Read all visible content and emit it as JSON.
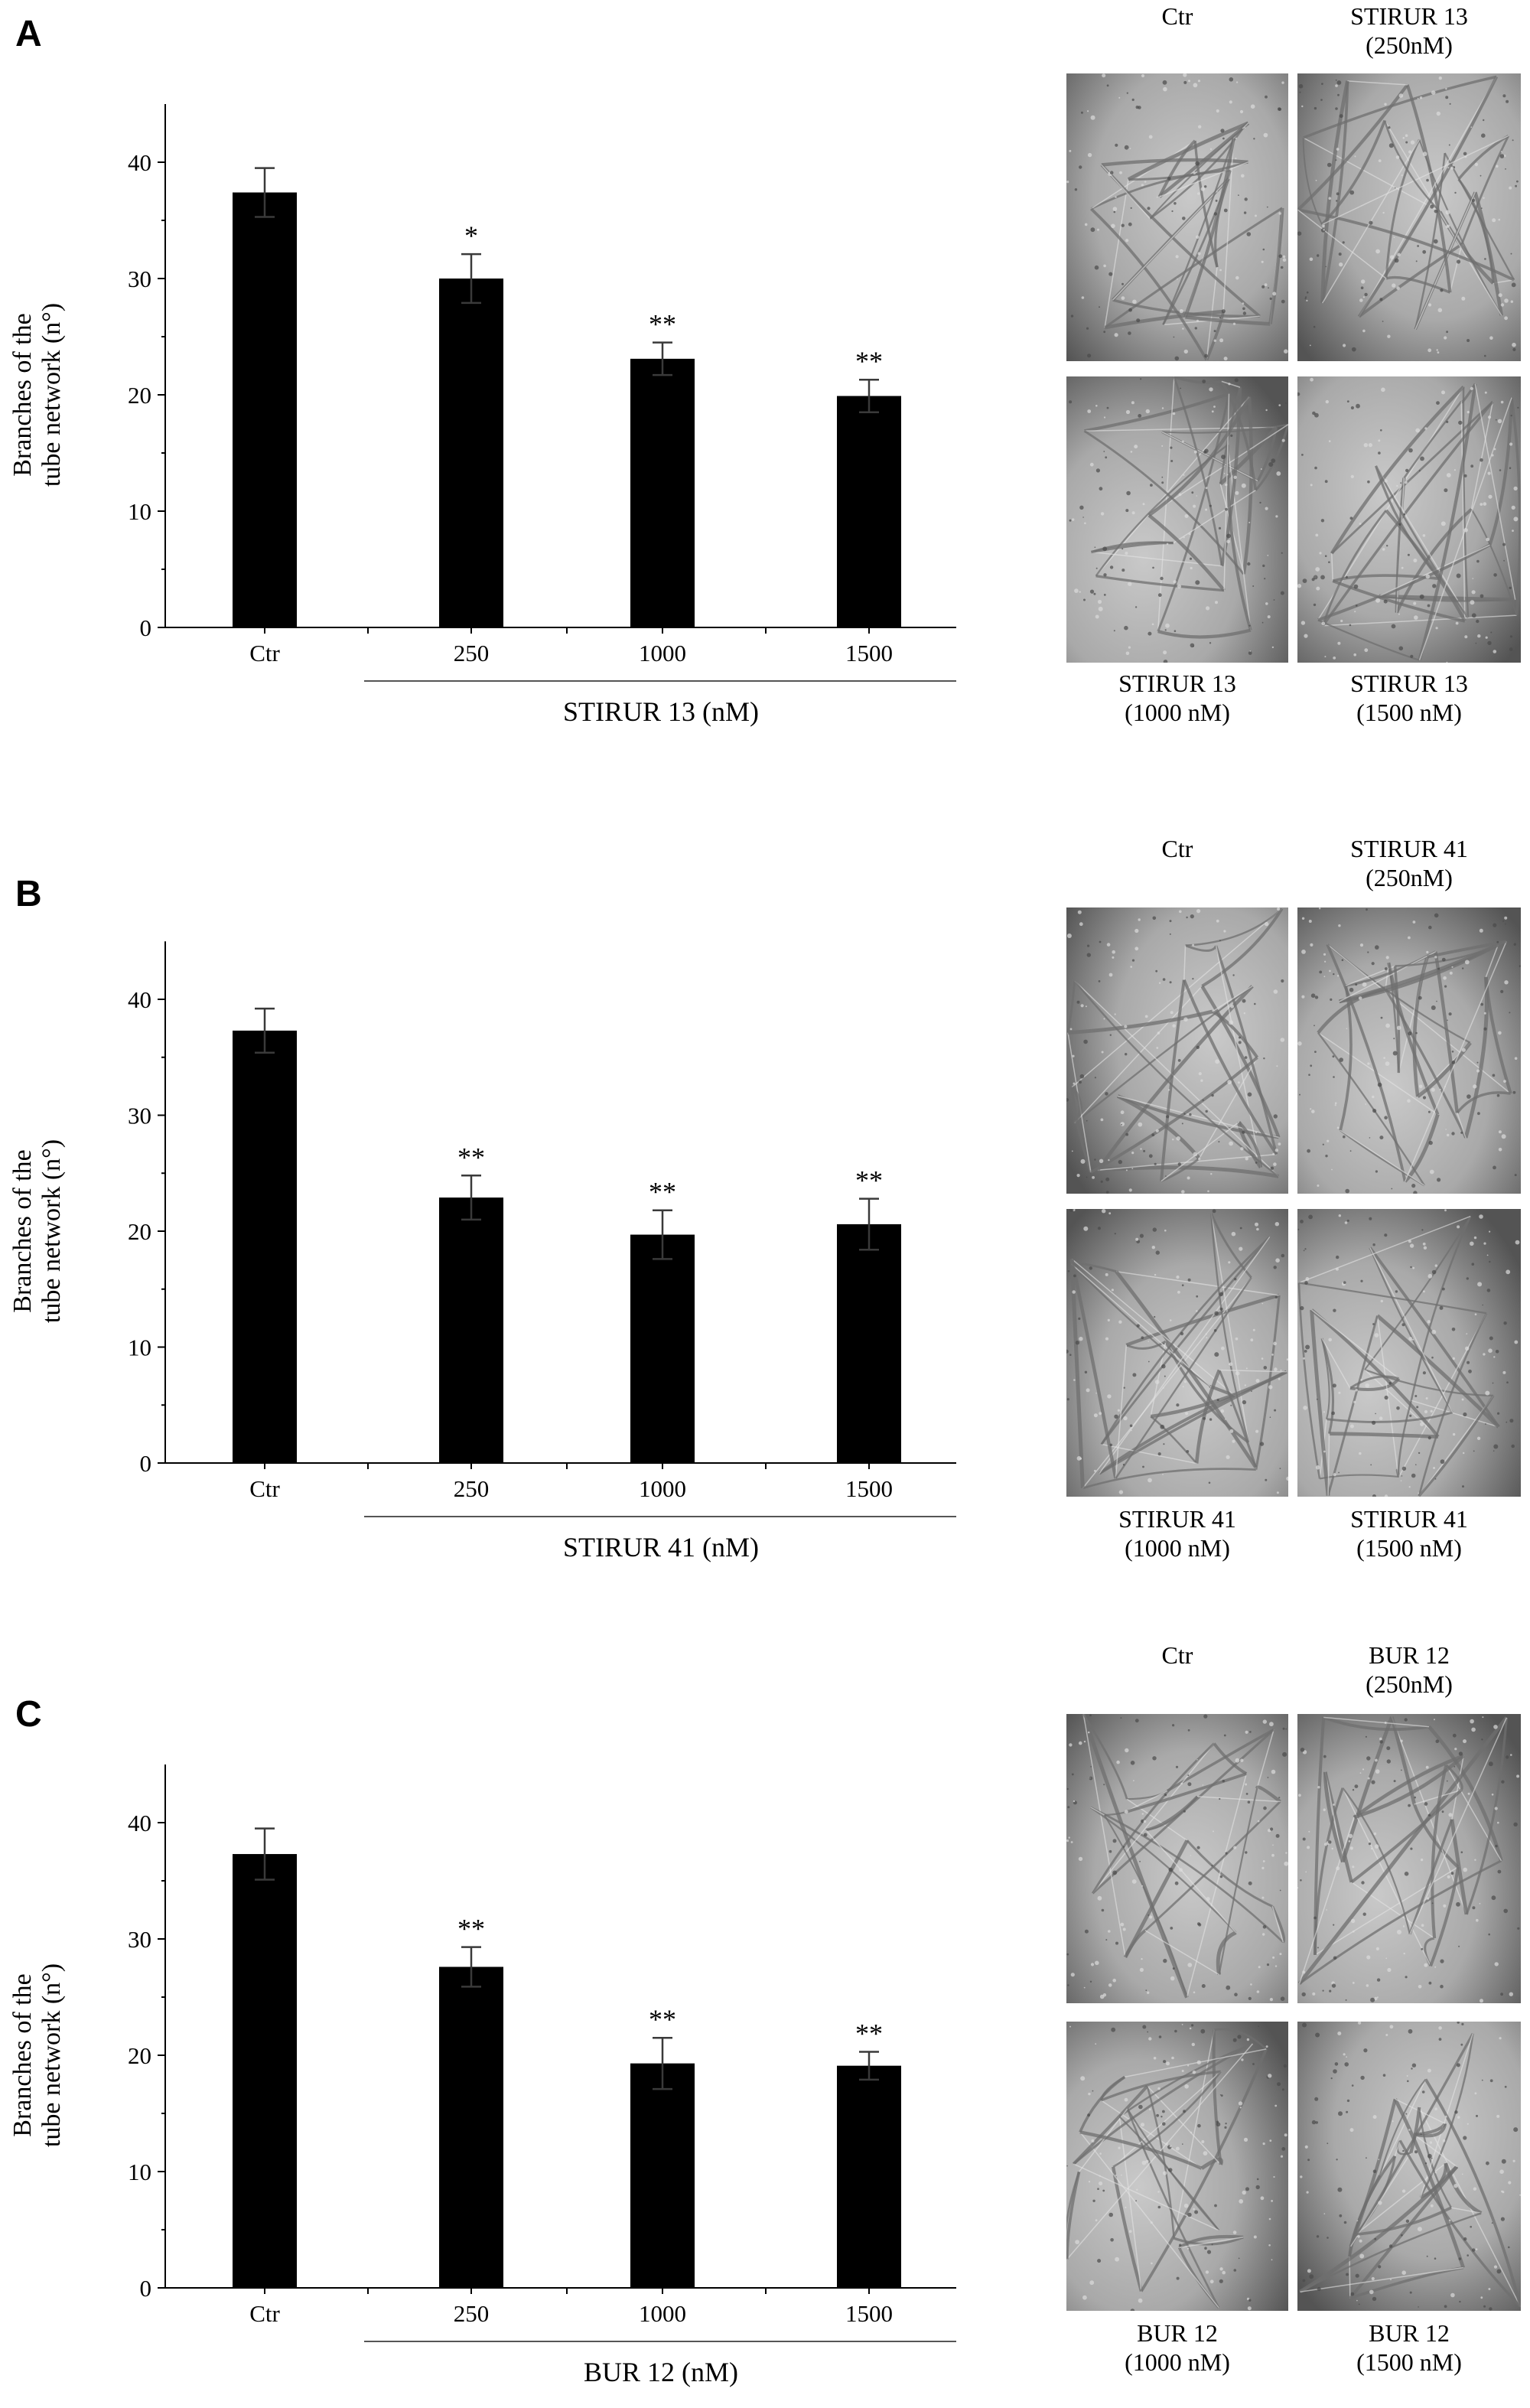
{
  "panels": [
    {
      "letter": "A",
      "ylabel_line1": "Branches of the",
      "ylabel_line2": "tube network (n°)",
      "group_label": "STIRUR 13 (nM)",
      "images": {
        "top_left": [
          "Ctr",
          ""
        ],
        "top_right": [
          "STIRUR 13",
          "(250nM)"
        ],
        "bottom_left": [
          "STIRUR 13",
          "(1000 nM)"
        ],
        "bottom_right": [
          "STIRUR 13",
          "(1500 nM)"
        ]
      }
    },
    {
      "letter": "B",
      "ylabel_line1": "Branches of the",
      "ylabel_line2": "tube network (n°)",
      "group_label": "STIRUR 41 (nM)",
      "images": {
        "top_left": [
          "Ctr",
          ""
        ],
        "top_right": [
          "STIRUR 41",
          "(250nM)"
        ],
        "bottom_left": [
          "STIRUR 41",
          "(1000 nM)"
        ],
        "bottom_right": [
          "STIRUR 41",
          "(1500 nM)"
        ]
      }
    },
    {
      "letter": "C",
      "ylabel_line1": "Branches of the",
      "ylabel_line2": "tube network (n°)",
      "group_label": "BUR 12 (nM)",
      "images": {
        "top_left": [
          "Ctr",
          ""
        ],
        "top_right": [
          "BUR 12",
          "(250nM)"
        ],
        "bottom_left": [
          "BUR 12",
          "(1000 nM)"
        ],
        "bottom_right": [
          "BUR 12",
          "(1500 nM)"
        ]
      }
    }
  ],
  "chart_data": [
    {
      "type": "bar",
      "panel": "A",
      "categories": [
        "Ctr",
        "250",
        "1000",
        "1500"
      ],
      "values": [
        37.4,
        30.0,
        23.1,
        19.9
      ],
      "errors": [
        2.1,
        2.1,
        1.4,
        1.4
      ],
      "significance": [
        "",
        "*",
        "**",
        "**"
      ],
      "ylabel": "Branches of the tube network (n°)",
      "xlabel": "STIRUR 13 (nM)",
      "yticks": [
        0,
        10,
        20,
        30,
        40
      ],
      "ylim": [
        0,
        45
      ],
      "bar_color": "#000000"
    },
    {
      "type": "bar",
      "panel": "B",
      "categories": [
        "Ctr",
        "250",
        "1000",
        "1500"
      ],
      "values": [
        37.3,
        22.9,
        19.7,
        20.6
      ],
      "errors": [
        1.9,
        1.9,
        2.1,
        2.2
      ],
      "significance": [
        "",
        "**",
        "**",
        "**"
      ],
      "ylabel": "Branches of the tube network (n°)",
      "xlabel": "STIRUR 41 (nM)",
      "yticks": [
        0,
        10,
        20,
        30,
        40
      ],
      "ylim": [
        0,
        45
      ],
      "bar_color": "#000000"
    },
    {
      "type": "bar",
      "panel": "C",
      "categories": [
        "Ctr",
        "250",
        "1000",
        "1500"
      ],
      "values": [
        37.3,
        27.6,
        19.3,
        19.1
      ],
      "errors": [
        2.2,
        1.7,
        2.2,
        1.2
      ],
      "significance": [
        "",
        "**",
        "**",
        "**"
      ],
      "ylabel": "Branches of the tube network (n°)",
      "xlabel": "BUR 12 (nM)",
      "yticks": [
        0,
        10,
        20,
        30,
        40
      ],
      "ylim": [
        0,
        45
      ],
      "bar_color": "#000000"
    }
  ]
}
